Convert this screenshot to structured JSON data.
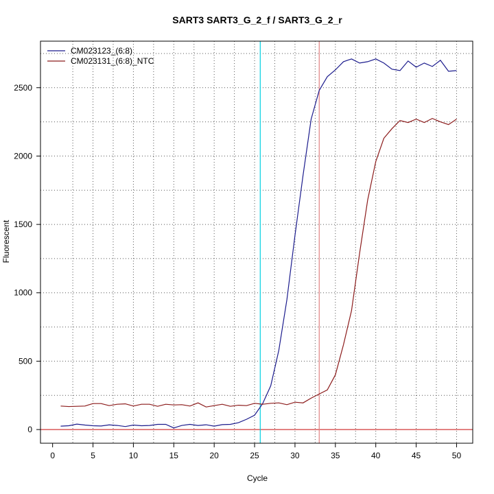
{
  "chart_data": {
    "type": "line",
    "title": "SART3  SART3_G_2_f / SART3_G_2_r",
    "xlabel": "Cycle",
    "ylabel": "Fluorescent",
    "xlim": [
      -1.5,
      52
    ],
    "ylim": [
      -100,
      2840
    ],
    "x_ticks": [
      0,
      5,
      10,
      15,
      20,
      25,
      30,
      35,
      40,
      45,
      50
    ],
    "y_ticks": [
      0,
      500,
      1000,
      1500,
      2000,
      2500
    ],
    "grid": true,
    "legend_position": "top-left",
    "x": [
      1,
      2,
      3,
      4,
      5,
      6,
      7,
      8,
      9,
      10,
      11,
      12,
      13,
      14,
      15,
      16,
      17,
      18,
      19,
      20,
      21,
      22,
      23,
      24,
      25,
      26,
      27,
      28,
      29,
      30,
      31,
      32,
      33,
      34,
      35,
      36,
      37,
      38,
      39,
      40,
      41,
      42,
      43,
      44,
      45,
      46,
      47,
      48,
      49,
      50
    ],
    "series": [
      {
        "name": "CM023123_(6:8)",
        "color": "#1a1a8c",
        "values": [
          25,
          28,
          40,
          33,
          28,
          26,
          34,
          30,
          22,
          33,
          28,
          30,
          38,
          38,
          12,
          30,
          38,
          30,
          35,
          25,
          36,
          38,
          50,
          75,
          105,
          190,
          320,
          580,
          950,
          1420,
          1860,
          2270,
          2480,
          2580,
          2630,
          2690,
          2710,
          2680,
          2690,
          2710,
          2680,
          2635,
          2625,
          2695,
          2650,
          2680,
          2655,
          2700,
          2620,
          2625
        ]
      },
      {
        "name": "CM023131_(6:8)_NTC",
        "color": "#8b1a1a",
        "values": [
          172,
          168,
          170,
          172,
          190,
          190,
          175,
          185,
          188,
          172,
          185,
          185,
          170,
          185,
          180,
          182,
          172,
          195,
          165,
          175,
          185,
          170,
          178,
          175,
          192,
          185,
          192,
          195,
          182,
          200,
          195,
          230,
          260,
          290,
          400,
          620,
          870,
          1290,
          1680,
          1960,
          2130,
          2200,
          2260,
          2245,
          2270,
          2245,
          2275,
          2250,
          2230,
          2270
        ]
      }
    ],
    "vlines": [
      {
        "x": 25.7,
        "color": "#00d0e0"
      },
      {
        "x": 33.0,
        "color": "#e08080"
      }
    ],
    "hline": {
      "y": 0,
      "color": "#cc2020"
    }
  }
}
